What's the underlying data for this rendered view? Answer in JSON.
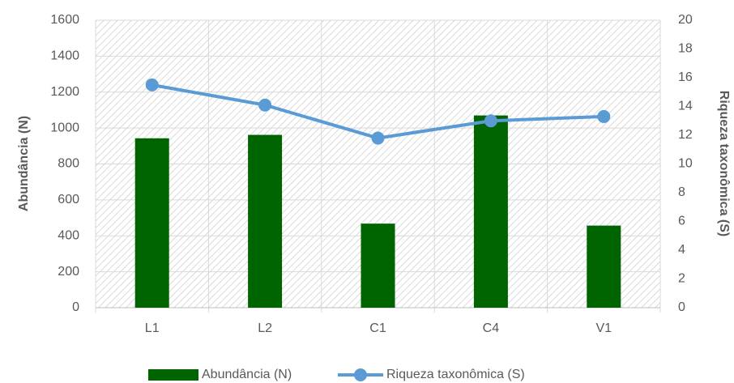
{
  "chart_data": {
    "type": "bar",
    "categories": [
      "L1",
      "L2",
      "C1",
      "C4",
      "V1"
    ],
    "series": [
      {
        "name": "Abundância (N)",
        "type": "bar",
        "color": "#006400",
        "values": [
          943,
          962,
          468,
          1070,
          457
        ]
      },
      {
        "name": "Riqueza taxonômica (S)",
        "type": "line",
        "axis": "y2",
        "color": "#5b9bd5",
        "values": [
          15.5,
          14.1,
          11.8,
          13.0,
          13.3
        ]
      }
    ],
    "ylabel": "Abundância (N)",
    "y2label": "Riqueza taxonômica (S)",
    "ylim": [
      0,
      1600
    ],
    "yticks": [
      0,
      200,
      400,
      600,
      800,
      1000,
      1200,
      1400,
      1600
    ],
    "y2lim": [
      0,
      20
    ],
    "y2ticks": [
      0,
      2,
      4,
      6,
      8,
      10,
      12,
      14,
      16,
      18,
      20
    ],
    "grid": true,
    "legend": "bottom"
  }
}
